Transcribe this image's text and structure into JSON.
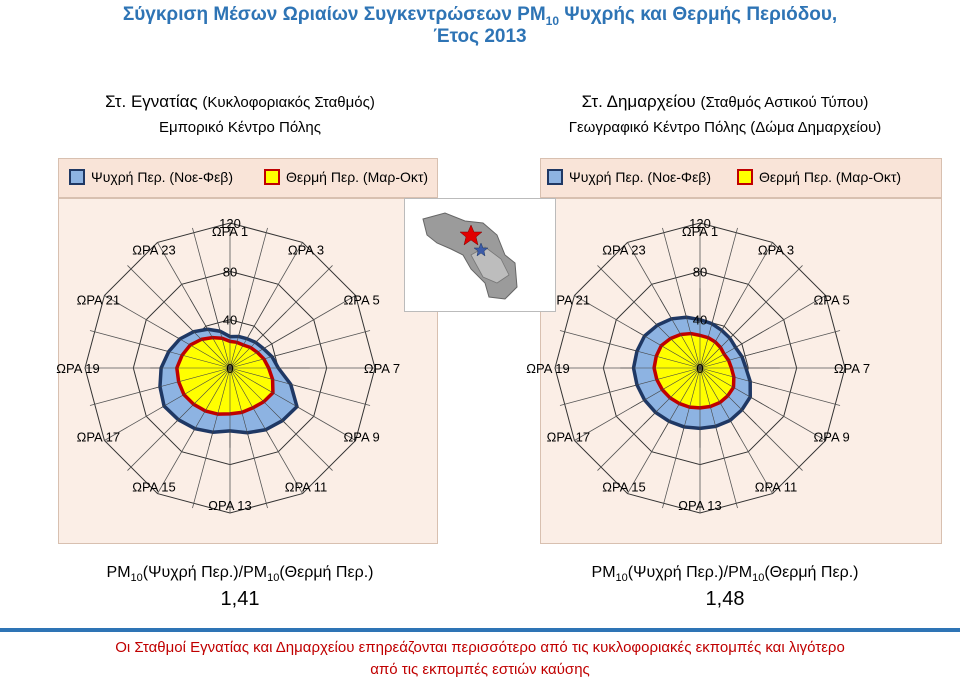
{
  "header": {
    "title_line1_a": "Σύγκριση Μέσων Ωριαίων Συγκεντρώσεων PM",
    "title_sub": "10",
    "title_line1_b": " Ψυχρής και Θερμής Περιόδου,",
    "title_line2": "Έτος 2013"
  },
  "stations": [
    {
      "name": "Στ. Εγνατίας",
      "type": "(Κυκλοφοριακός Σταθμός)",
      "location": "Εμπορικό Κέντρο Πόλης",
      "ratio_a": "PM",
      "ratio_sub1": "10",
      "ratio_b": "(Ψυχρή Περ.)/PM",
      "ratio_sub2": "10",
      "ratio_c": "(Θερμή Περ.)",
      "ratio_value": "1,41"
    },
    {
      "name": "Στ. Δημαρχείου",
      "type": "(Σταθμός Αστικού Τύπου)",
      "location": "Γεωγραφικό Κέντρο Πόλης (Δώμα Δημαρχείου)",
      "ratio_a": "PM",
      "ratio_sub1": "10",
      "ratio_b": "(Ψυχρή Περ.)/PM",
      "ratio_sub2": "10",
      "ratio_c": "(Θερμή Περ.)",
      "ratio_value": "1,48"
    }
  ],
  "legend": {
    "cold": "Ψυχρή Περ. (Νοε-Φεβ)",
    "warm": "Θερμή Περ. (Μαρ-Οκτ)"
  },
  "colors": {
    "cold_fill": "#8db3e2",
    "cold_line": "#1f3864",
    "warm_fill": "#ffff00",
    "warm_line": "#c00000",
    "title": "#2e74b5",
    "footer": "#c00000"
  },
  "map": {
    "icon": "city-map-thumbnail",
    "markers": [
      "red-star",
      "blue-star"
    ]
  },
  "chart_data": [
    {
      "type": "radar",
      "station": "Στ. Εγνατίας",
      "categories": [
        "ΩΡΑ 1",
        "ΩΡΑ 3",
        "ΩΡΑ 5",
        "ΩΡΑ 7",
        "ΩΡΑ 9",
        "ΩΡΑ 11",
        "ΩΡΑ 13",
        "ΩΡΑ 15",
        "ΩΡΑ 17",
        "ΩΡΑ 19",
        "ΩΡΑ 21",
        "ΩΡΑ 23"
      ],
      "rlim": [
        0,
        120
      ],
      "rticks": [
        "0",
        "40",
        "80",
        "120"
      ],
      "series": [
        {
          "name": "Ψυχρή Περ. (Νοε-Φεβ)",
          "values": [
            26,
            28,
            32,
            40,
            64,
            59,
            52,
            58,
            63,
            57,
            48,
            37
          ]
        },
        {
          "name": "Θερμή Περ. (Μαρ-Οκτ)",
          "values": [
            22,
            22,
            26,
            32,
            41,
            38,
            38,
            41,
            44,
            44,
            38,
            29
          ]
        }
      ]
    },
    {
      "type": "radar",
      "station": "Στ. Δημαρχείου",
      "categories": [
        "ΩΡΑ 1",
        "ΩΡΑ 3",
        "ΩΡΑ 5",
        "ΩΡΑ 7",
        "ΩΡΑ 9",
        "ΩΡΑ 11",
        "ΩΡΑ 13",
        "ΩΡΑ 15",
        "ΩΡΑ 17",
        "ΩΡΑ 19",
        "ΩΡΑ 21",
        "ΩΡΑ 23"
      ],
      "rlim": [
        0,
        120
      ],
      "rticks": [
        "0",
        "40",
        "80",
        "120"
      ],
      "series": [
        {
          "name": "Ψυχρή Περ. (Νοε-Φεβ)",
          "values": [
            40,
            36,
            34,
            38,
            48,
            50,
            50,
            51,
            53,
            55,
            53,
            47
          ]
        },
        {
          "name": "Θερμή Περ. (Μαρ-Οκτ)",
          "values": [
            27,
            25,
            23,
            26,
            32,
            33,
            33,
            34,
            36,
            38,
            37,
            32
          ]
        }
      ]
    }
  ],
  "footer": {
    "line1": "Οι Σταθμοί Εγνατίας και Δημαρχείου επηρεάζονται περισσότερο από τις κυκλοφοριακές εκπομπές και λιγότερο",
    "line2": "από τις εκπομπές εστιών καύσης"
  }
}
